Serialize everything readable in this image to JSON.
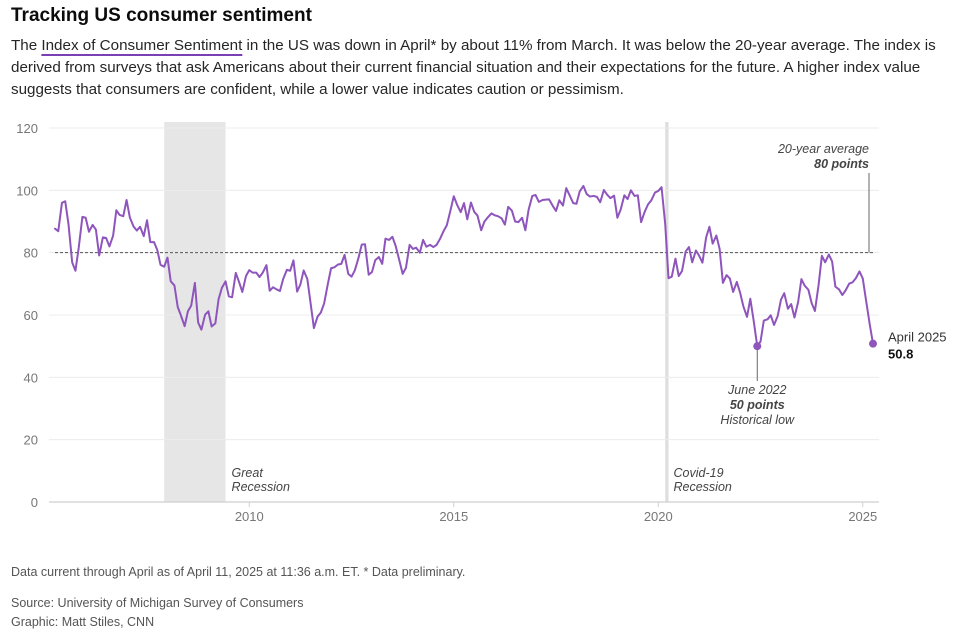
{
  "header": {
    "title": "Tracking US consumer sentiment",
    "desc_before": "The ",
    "desc_link": "Index of Consumer Sentiment",
    "desc_after": " in the US was down in April* by about 11% from March. It was below the 20-year average. The index is derived from surveys that ask Americans about their current financial situation and their expectations for the future. A higher index value suggests that consumers are confident, while a lower value indicates caution or pessimism."
  },
  "chart_data": {
    "type": "line",
    "title": "Tracking US consumer sentiment",
    "xlabel": "",
    "ylabel": "",
    "ylim": [
      0,
      120
    ],
    "xlim": [
      2005.25,
      2025.25
    ],
    "y_ticks": [
      "0",
      "20",
      "40",
      "60",
      "80",
      "100",
      "120"
    ],
    "x_ticks": [
      "2010",
      "2015",
      "2020",
      "2025"
    ],
    "grid": true,
    "reference_line": {
      "value": 80,
      "label_line1": "20-year average",
      "label_line2": "80 points"
    },
    "shaded_periods": [
      {
        "start": 2007.92,
        "end": 2009.42,
        "label_line1": "Great",
        "label_line2": "Recession"
      },
      {
        "start": 2020.17,
        "end": 2020.25,
        "label_line1": "Covid-19",
        "label_line2": "Recession"
      }
    ],
    "annotations": [
      {
        "x": 2022.42,
        "y": 50.0,
        "line1": "June 2022",
        "line2": "50 points",
        "line3": "Historical low"
      },
      {
        "x": 2025.25,
        "y": 50.8,
        "line1": "April 2025",
        "line2": "50.8"
      }
    ],
    "series": [
      {
        "name": "Index of Consumer Sentiment",
        "color": "#8e55bd",
        "points": [
          [
            2005.25,
            87.7
          ],
          [
            2005.33,
            86.9
          ],
          [
            2005.42,
            96.0
          ],
          [
            2005.5,
            96.5
          ],
          [
            2005.58,
            89.1
          ],
          [
            2005.67,
            76.9
          ],
          [
            2005.75,
            74.2
          ],
          [
            2005.83,
            81.6
          ],
          [
            2005.92,
            91.5
          ],
          [
            2006.0,
            91.2
          ],
          [
            2006.08,
            86.7
          ],
          [
            2006.17,
            88.9
          ],
          [
            2006.25,
            87.4
          ],
          [
            2006.33,
            79.1
          ],
          [
            2006.42,
            84.9
          ],
          [
            2006.5,
            84.7
          ],
          [
            2006.58,
            82.0
          ],
          [
            2006.67,
            85.4
          ],
          [
            2006.75,
            93.6
          ],
          [
            2006.83,
            92.1
          ],
          [
            2006.92,
            91.7
          ],
          [
            2007.0,
            96.9
          ],
          [
            2007.08,
            91.3
          ],
          [
            2007.17,
            88.4
          ],
          [
            2007.25,
            87.1
          ],
          [
            2007.33,
            88.3
          ],
          [
            2007.42,
            85.3
          ],
          [
            2007.5,
            90.4
          ],
          [
            2007.58,
            83.4
          ],
          [
            2007.67,
            83.4
          ],
          [
            2007.75,
            80.9
          ],
          [
            2007.83,
            76.1
          ],
          [
            2007.92,
            75.5
          ],
          [
            2008.0,
            78.4
          ],
          [
            2008.08,
            70.8
          ],
          [
            2008.17,
            69.5
          ],
          [
            2008.25,
            62.6
          ],
          [
            2008.33,
            59.8
          ],
          [
            2008.42,
            56.4
          ],
          [
            2008.5,
            61.2
          ],
          [
            2008.58,
            63.0
          ],
          [
            2008.67,
            70.3
          ],
          [
            2008.75,
            57.6
          ],
          [
            2008.83,
            55.3
          ],
          [
            2008.92,
            60.1
          ],
          [
            2009.0,
            61.2
          ],
          [
            2009.08,
            56.3
          ],
          [
            2009.17,
            57.3
          ],
          [
            2009.25,
            65.1
          ],
          [
            2009.33,
            68.7
          ],
          [
            2009.42,
            70.8
          ],
          [
            2009.5,
            66.0
          ],
          [
            2009.58,
            65.7
          ],
          [
            2009.67,
            73.5
          ],
          [
            2009.75,
            70.6
          ],
          [
            2009.83,
            67.4
          ],
          [
            2009.92,
            72.5
          ],
          [
            2010.0,
            74.4
          ],
          [
            2010.08,
            73.6
          ],
          [
            2010.17,
            73.6
          ],
          [
            2010.25,
            72.2
          ],
          [
            2010.33,
            73.6
          ],
          [
            2010.42,
            76.0
          ],
          [
            2010.5,
            67.8
          ],
          [
            2010.58,
            68.9
          ],
          [
            2010.67,
            68.2
          ],
          [
            2010.75,
            67.7
          ],
          [
            2010.83,
            71.6
          ],
          [
            2010.92,
            74.5
          ],
          [
            2011.0,
            74.2
          ],
          [
            2011.08,
            77.5
          ],
          [
            2011.17,
            67.5
          ],
          [
            2011.25,
            69.8
          ],
          [
            2011.33,
            74.3
          ],
          [
            2011.42,
            71.5
          ],
          [
            2011.5,
            63.7
          ],
          [
            2011.58,
            55.8
          ],
          [
            2011.67,
            59.5
          ],
          [
            2011.75,
            60.8
          ],
          [
            2011.83,
            63.7
          ],
          [
            2011.92,
            69.9
          ],
          [
            2012.0,
            75.0
          ],
          [
            2012.08,
            75.3
          ],
          [
            2012.17,
            76.2
          ],
          [
            2012.25,
            76.4
          ],
          [
            2012.33,
            79.3
          ],
          [
            2012.42,
            73.2
          ],
          [
            2012.5,
            72.3
          ],
          [
            2012.58,
            74.3
          ],
          [
            2012.67,
            78.3
          ],
          [
            2012.75,
            82.6
          ],
          [
            2012.83,
            82.7
          ],
          [
            2012.92,
            72.9
          ],
          [
            2013.0,
            73.8
          ],
          [
            2013.08,
            77.6
          ],
          [
            2013.17,
            78.6
          ],
          [
            2013.25,
            76.4
          ],
          [
            2013.33,
            84.5
          ],
          [
            2013.42,
            84.1
          ],
          [
            2013.5,
            85.1
          ],
          [
            2013.58,
            82.1
          ],
          [
            2013.67,
            77.5
          ],
          [
            2013.75,
            73.2
          ],
          [
            2013.83,
            75.1
          ],
          [
            2013.92,
            82.5
          ],
          [
            2014.0,
            81.2
          ],
          [
            2014.08,
            81.6
          ],
          [
            2014.17,
            80.0
          ],
          [
            2014.25,
            84.1
          ],
          [
            2014.33,
            81.9
          ],
          [
            2014.42,
            82.5
          ],
          [
            2014.5,
            81.8
          ],
          [
            2014.58,
            82.5
          ],
          [
            2014.67,
            84.6
          ],
          [
            2014.75,
            86.9
          ],
          [
            2014.83,
            88.8
          ],
          [
            2014.92,
            93.6
          ],
          [
            2015.0,
            98.1
          ],
          [
            2015.08,
            95.4
          ],
          [
            2015.17,
            93.0
          ],
          [
            2015.25,
            95.9
          ],
          [
            2015.33,
            90.7
          ],
          [
            2015.42,
            96.1
          ],
          [
            2015.5,
            93.1
          ],
          [
            2015.58,
            91.9
          ],
          [
            2015.67,
            87.2
          ],
          [
            2015.75,
            90.0
          ],
          [
            2015.83,
            91.3
          ],
          [
            2015.92,
            92.6
          ],
          [
            2016.0,
            92.0
          ],
          [
            2016.08,
            91.7
          ],
          [
            2016.17,
            91.0
          ],
          [
            2016.25,
            89.0
          ],
          [
            2016.33,
            94.7
          ],
          [
            2016.42,
            93.5
          ],
          [
            2016.5,
            90.0
          ],
          [
            2016.58,
            89.8
          ],
          [
            2016.67,
            91.2
          ],
          [
            2016.75,
            87.2
          ],
          [
            2016.83,
            93.8
          ],
          [
            2016.92,
            98.2
          ],
          [
            2017.0,
            98.5
          ],
          [
            2017.08,
            96.3
          ],
          [
            2017.17,
            96.9
          ],
          [
            2017.25,
            97.0
          ],
          [
            2017.33,
            97.1
          ],
          [
            2017.42,
            95.0
          ],
          [
            2017.5,
            93.4
          ],
          [
            2017.58,
            96.8
          ],
          [
            2017.67,
            95.1
          ],
          [
            2017.75,
            100.7
          ],
          [
            2017.83,
            98.5
          ],
          [
            2017.92,
            95.9
          ],
          [
            2018.0,
            95.7
          ],
          [
            2018.08,
            99.7
          ],
          [
            2018.17,
            101.4
          ],
          [
            2018.25,
            98.8
          ],
          [
            2018.33,
            98.0
          ],
          [
            2018.42,
            98.2
          ],
          [
            2018.5,
            97.9
          ],
          [
            2018.58,
            96.2
          ],
          [
            2018.67,
            100.1
          ],
          [
            2018.75,
            98.6
          ],
          [
            2018.83,
            97.5
          ],
          [
            2018.92,
            98.3
          ],
          [
            2019.0,
            91.2
          ],
          [
            2019.08,
            93.8
          ],
          [
            2019.17,
            98.4
          ],
          [
            2019.25,
            97.2
          ],
          [
            2019.33,
            100.0
          ],
          [
            2019.42,
            98.2
          ],
          [
            2019.5,
            98.4
          ],
          [
            2019.58,
            89.8
          ],
          [
            2019.67,
            93.2
          ],
          [
            2019.75,
            95.5
          ],
          [
            2019.83,
            96.8
          ],
          [
            2019.92,
            99.3
          ],
          [
            2020.0,
            99.8
          ],
          [
            2020.08,
            101.0
          ],
          [
            2020.17,
            89.1
          ],
          [
            2020.25,
            71.8
          ],
          [
            2020.33,
            72.3
          ],
          [
            2020.42,
            78.1
          ],
          [
            2020.5,
            72.5
          ],
          [
            2020.58,
            74.1
          ],
          [
            2020.67,
            80.4
          ],
          [
            2020.75,
            81.8
          ],
          [
            2020.83,
            76.9
          ],
          [
            2020.92,
            80.7
          ],
          [
            2021.0,
            79.0
          ],
          [
            2021.08,
            76.8
          ],
          [
            2021.17,
            84.9
          ],
          [
            2021.25,
            88.3
          ],
          [
            2021.33,
            82.9
          ],
          [
            2021.42,
            85.5
          ],
          [
            2021.5,
            81.2
          ],
          [
            2021.58,
            70.3
          ],
          [
            2021.67,
            72.8
          ],
          [
            2021.75,
            71.7
          ],
          [
            2021.83,
            67.4
          ],
          [
            2021.92,
            70.6
          ],
          [
            2022.0,
            67.2
          ],
          [
            2022.08,
            62.8
          ],
          [
            2022.17,
            59.4
          ],
          [
            2022.25,
            65.2
          ],
          [
            2022.33,
            58.4
          ],
          [
            2022.42,
            50.0
          ],
          [
            2022.5,
            51.5
          ],
          [
            2022.58,
            58.2
          ],
          [
            2022.67,
            58.6
          ],
          [
            2022.75,
            59.9
          ],
          [
            2022.83,
            56.8
          ],
          [
            2022.92,
            59.7
          ],
          [
            2023.0,
            64.9
          ],
          [
            2023.08,
            67.0
          ],
          [
            2023.17,
            62.0
          ],
          [
            2023.25,
            63.5
          ],
          [
            2023.33,
            59.2
          ],
          [
            2023.42,
            64.2
          ],
          [
            2023.5,
            71.5
          ],
          [
            2023.58,
            69.4
          ],
          [
            2023.67,
            68.1
          ],
          [
            2023.75,
            63.8
          ],
          [
            2023.83,
            61.3
          ],
          [
            2023.92,
            69.7
          ],
          [
            2024.0,
            79.0
          ],
          [
            2024.08,
            76.9
          ],
          [
            2024.17,
            79.4
          ],
          [
            2024.25,
            77.2
          ],
          [
            2024.33,
            69.1
          ],
          [
            2024.42,
            68.2
          ],
          [
            2024.5,
            66.4
          ],
          [
            2024.58,
            67.9
          ],
          [
            2024.67,
            70.1
          ],
          [
            2024.75,
            70.5
          ],
          [
            2024.83,
            71.8
          ],
          [
            2024.92,
            74.0
          ],
          [
            2025.0,
            71.7
          ],
          [
            2025.08,
            64.7
          ],
          [
            2025.17,
            57.0
          ],
          [
            2025.25,
            50.8
          ]
        ]
      }
    ]
  },
  "footer": {
    "note": "Data current through April as of April 11, 2025 at 11:36 a.m. ET. * Data preliminary.",
    "source": "Source: University of Michigan Survey of Consumers",
    "credit": "Graphic: Matt Stiles, CNN"
  },
  "colors": {
    "line": "#8e55bd",
    "recession_fill": "#e6e6e6",
    "covid_bar": "#dedede",
    "grid": "#ececec",
    "reference": "#555555"
  }
}
